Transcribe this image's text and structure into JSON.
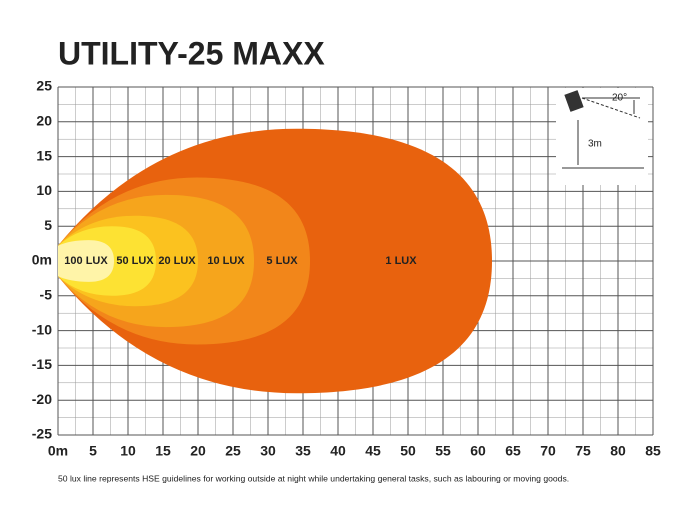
{
  "chart_data": {
    "type": "isolux",
    "title": "UTILITY-25 MAXX",
    "series": [
      {
        "name": "1 LUX",
        "color": "#e8620e",
        "reach": 62,
        "half_width": 19
      },
      {
        "name": "5 LUX",
        "color": "#f2861a",
        "reach": 36,
        "half_width": 12
      },
      {
        "name": "10 LUX",
        "color": "#f6a51c",
        "reach": 28,
        "half_width": 9.5
      },
      {
        "name": "20 LUX",
        "color": "#fbc21f",
        "reach": 20,
        "half_width": 6.5
      },
      {
        "name": "50 LUX",
        "color": "#fde233",
        "reach": 14,
        "half_width": 5
      },
      {
        "name": "100 LUX",
        "color": "#fff4a8",
        "reach": 8,
        "half_width": 3
      }
    ],
    "xlim": [
      0,
      85
    ],
    "xticks": [
      {
        "value": 0,
        "label": "0m"
      },
      5,
      10,
      15,
      20,
      25,
      30,
      35,
      40,
      45,
      50,
      55,
      60,
      65,
      70,
      75,
      80,
      85
    ],
    "ylim": [
      -25,
      25
    ],
    "yticks": [
      -25,
      -20,
      -15,
      -10,
      -5,
      {
        "value": 0,
        "label": "0m"
      },
      5,
      10,
      15,
      20,
      25
    ],
    "grid": true,
    "annotations": [
      "20°",
      "3m"
    ],
    "note": "50 lux line represents HSE guidelines for working outside at night while undertaking general tasks, such as labouring or moving goods."
  }
}
